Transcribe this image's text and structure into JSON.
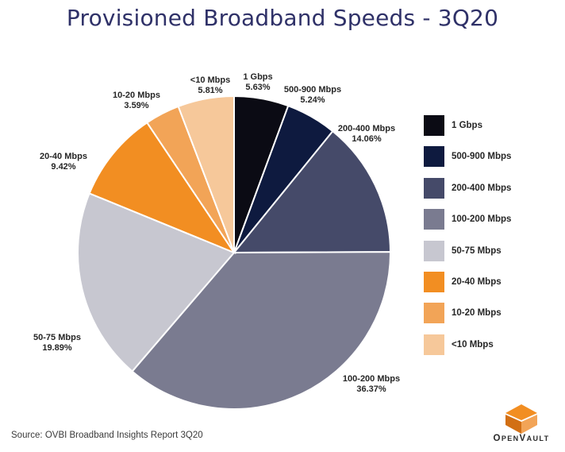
{
  "chart_data": {
    "type": "pie",
    "title": "Provisioned Broadband Speeds - 3Q20",
    "categories": [
      "1 Gbps",
      "500-900 Mbps",
      "200-400 Mbps",
      "100-200 Mbps",
      "50-75 Mbps",
      "20-40 Mbps",
      "10-20 Mbps",
      "<10 Mbps"
    ],
    "values": [
      5.63,
      5.24,
      14.06,
      36.37,
      19.89,
      9.42,
      3.59,
      5.81
    ],
    "value_labels": [
      "5.63%",
      "5.24%",
      "14.06%",
      "36.37%",
      "19.89%",
      "9.42%",
      "3.59%",
      "5.81%"
    ],
    "colors": [
      "#0b0b14",
      "#0e1a3f",
      "#454a69",
      "#7a7b90",
      "#c7c7d0",
      "#f28e22",
      "#f2a457",
      "#f6c89a"
    ],
    "unit": "%",
    "legend_position": "right"
  },
  "source": "Source: OVBI Broadband Insights Report 3Q20",
  "logo": {
    "text": "OpenVault",
    "icon": "openvault-logo-icon"
  }
}
